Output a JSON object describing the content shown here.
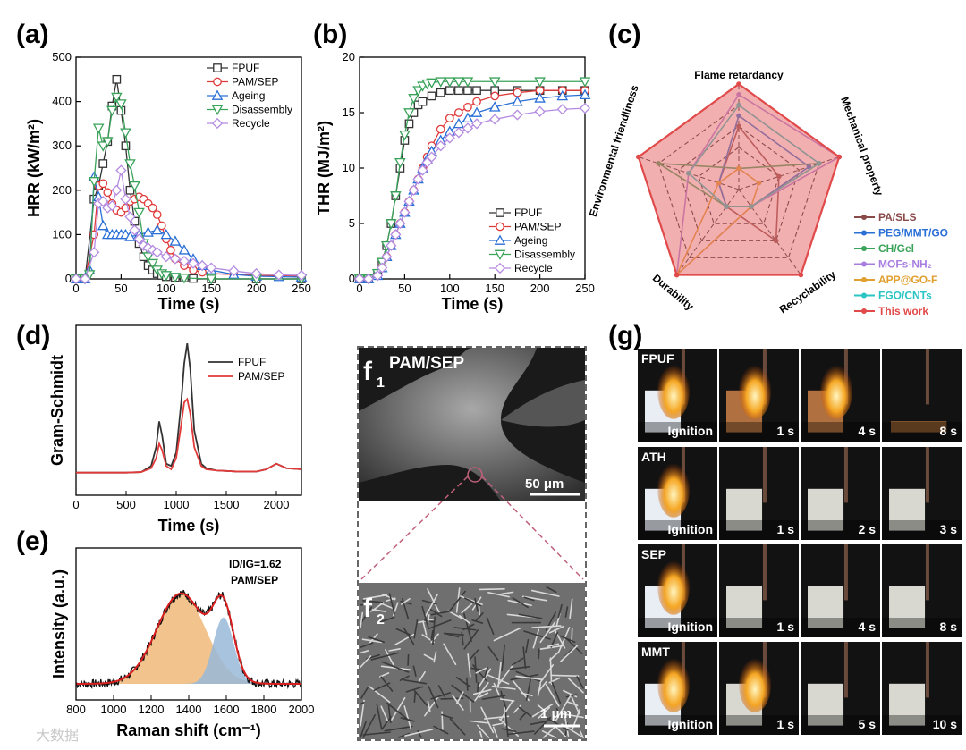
{
  "panels": {
    "a": "(a)",
    "b": "(b)",
    "c": "(c)",
    "d": "(d)",
    "e": "(e)",
    "g": "(g)"
  },
  "watermark": "大数据",
  "chart_data": [
    {
      "id": "a",
      "type": "line",
      "xlabel": "Time (s)",
      "ylabel": "HRR (kW/m²)",
      "xlim": [
        0,
        250
      ],
      "ylim": [
        0,
        500
      ],
      "xticks": [
        "0",
        "50",
        "100",
        "150",
        "200",
        "250"
      ],
      "yticks": [
        "0",
        "100",
        "200",
        "300",
        "400",
        "500"
      ],
      "series": [
        {
          "name": "FPUF",
          "color": "#333333",
          "marker": "square",
          "x": [
            0,
            10,
            20,
            25,
            30,
            35,
            40,
            45,
            50,
            55,
            60,
            65,
            70,
            75,
            80,
            85,
            90,
            95,
            100,
            110,
            120,
            130,
            150,
            200,
            250
          ],
          "y": [
            0,
            0,
            180,
            210,
            260,
            310,
            390,
            450,
            380,
            300,
            200,
            130,
            80,
            50,
            30,
            20,
            12,
            8,
            5,
            3,
            2,
            1,
            0,
            0,
            0
          ]
        },
        {
          "name": "PAM/SEP",
          "color": "#e03a3a",
          "marker": "circle",
          "x": [
            0,
            10,
            20,
            25,
            30,
            35,
            40,
            45,
            50,
            55,
            60,
            65,
            70,
            75,
            80,
            85,
            90,
            95,
            100,
            105,
            110,
            120,
            130,
            140,
            150,
            175,
            200,
            225,
            250
          ],
          "y": [
            0,
            0,
            100,
            210,
            215,
            195,
            170,
            155,
            150,
            160,
            175,
            180,
            185,
            180,
            170,
            160,
            145,
            120,
            90,
            65,
            45,
            30,
            20,
            15,
            12,
            10,
            8,
            7,
            6
          ]
        },
        {
          "name": "Ageing",
          "color": "#2a6fd6",
          "marker": "triangle",
          "x": [
            0,
            10,
            15,
            20,
            25,
            30,
            35,
            40,
            45,
            50,
            55,
            60,
            70,
            80,
            90,
            100,
            110,
            120,
            130,
            140,
            150,
            175,
            200,
            225,
            250
          ],
          "y": [
            0,
            0,
            20,
            230,
            185,
            120,
            100,
            100,
            100,
            100,
            100,
            95,
            100,
            105,
            110,
            100,
            85,
            65,
            45,
            30,
            20,
            10,
            6,
            5,
            4
          ]
        },
        {
          "name": "Disassembly",
          "color": "#3aa35a",
          "marker": "triangle-down",
          "x": [
            0,
            10,
            15,
            20,
            25,
            30,
            35,
            40,
            45,
            50,
            55,
            60,
            65,
            70,
            75,
            80,
            85,
            90,
            95,
            100,
            110,
            120,
            150,
            200,
            250
          ],
          "y": [
            0,
            0,
            10,
            220,
            340,
            300,
            310,
            380,
            410,
            395,
            330,
            260,
            210,
            150,
            80,
            50,
            35,
            20,
            12,
            8,
            4,
            2,
            0,
            0,
            0
          ]
        },
        {
          "name": "Recycle",
          "color": "#b48be0",
          "marker": "diamond",
          "x": [
            0,
            10,
            20,
            25,
            30,
            35,
            40,
            45,
            50,
            55,
            60,
            65,
            70,
            75,
            80,
            85,
            90,
            100,
            110,
            120,
            130,
            140,
            150,
            175,
            200,
            225,
            250
          ],
          "y": [
            0,
            0,
            60,
            170,
            175,
            160,
            165,
            200,
            245,
            180,
            140,
            110,
            90,
            75,
            70,
            65,
            60,
            50,
            45,
            40,
            35,
            30,
            25,
            18,
            12,
            9,
            8
          ]
        }
      ]
    },
    {
      "id": "b",
      "type": "line",
      "xlabel": "Time (s)",
      "ylabel": "THR (MJ/m²)",
      "xlim": [
        0,
        250
      ],
      "ylim": [
        0,
        20
      ],
      "xticks": [
        "0",
        "50",
        "100",
        "150",
        "200",
        "250"
      ],
      "yticks": [
        "0",
        "5",
        "10",
        "15",
        "20"
      ],
      "series": [
        {
          "name": "FPUF",
          "color": "#333333",
          "marker": "square",
          "x": [
            0,
            10,
            20,
            25,
            30,
            35,
            40,
            45,
            50,
            55,
            60,
            65,
            70,
            80,
            90,
            100,
            110,
            120,
            130,
            150,
            175,
            200,
            225,
            250
          ],
          "y": [
            0,
            0,
            0.5,
            1.5,
            3,
            5,
            7.5,
            10,
            12.5,
            14,
            15,
            15.7,
            16,
            16.5,
            16.8,
            17,
            17,
            17,
            17,
            17,
            17,
            17,
            17,
            17
          ]
        },
        {
          "name": "PAM/SEP",
          "color": "#e03a3a",
          "marker": "circle",
          "x": [
            0,
            10,
            20,
            25,
            30,
            35,
            40,
            45,
            50,
            55,
            60,
            65,
            70,
            75,
            80,
            90,
            100,
            110,
            120,
            130,
            150,
            175,
            200,
            225,
            250
          ],
          "y": [
            0,
            0,
            0.3,
            1,
            2,
            3,
            4,
            5,
            6,
            7,
            8,
            9,
            10,
            11,
            12,
            13.5,
            14.5,
            15,
            15.5,
            16,
            16.5,
            16.8,
            17,
            17,
            17
          ]
        },
        {
          "name": "Ageing",
          "color": "#2a6fd6",
          "marker": "triangle",
          "x": [
            0,
            10,
            20,
            25,
            30,
            35,
            40,
            45,
            50,
            55,
            60,
            65,
            70,
            75,
            80,
            90,
            100,
            110,
            120,
            130,
            150,
            175,
            200,
            225,
            250
          ],
          "y": [
            0,
            0,
            0.3,
            1,
            2,
            3,
            4,
            5,
            6,
            7,
            8,
            9,
            10,
            10.8,
            11.5,
            12.5,
            13.3,
            14,
            14.5,
            15,
            15.5,
            16,
            16.3,
            16.5,
            16.6
          ]
        },
        {
          "name": "Disassembly",
          "color": "#3aa35a",
          "marker": "triangle-down",
          "x": [
            0,
            10,
            20,
            25,
            30,
            35,
            40,
            45,
            50,
            55,
            60,
            65,
            70,
            75,
            80,
            90,
            100,
            110,
            120,
            150,
            200,
            250
          ],
          "y": [
            0,
            0,
            0.5,
            1.5,
            3,
            5,
            7.5,
            10.5,
            13,
            15,
            16.3,
            17,
            17.4,
            17.6,
            17.7,
            17.8,
            17.8,
            17.8,
            17.8,
            17.8,
            17.8,
            17.8
          ]
        },
        {
          "name": "Recycle",
          "color": "#b48be0",
          "marker": "diamond",
          "x": [
            0,
            10,
            20,
            25,
            30,
            35,
            40,
            45,
            50,
            55,
            60,
            65,
            70,
            75,
            80,
            90,
            100,
            110,
            120,
            130,
            150,
            175,
            200,
            225,
            250
          ],
          "y": [
            0,
            0,
            0.3,
            1,
            2,
            3,
            4,
            5,
            6,
            7,
            8,
            9,
            9.8,
            10.5,
            11,
            12,
            12.7,
            13.2,
            13.6,
            14,
            14.4,
            14.8,
            15.1,
            15.3,
            15.4
          ]
        }
      ]
    },
    {
      "id": "c",
      "type": "radar",
      "axes": [
        "Flame retardancy",
        "Mechanical property",
        "Recyclability",
        "Durability",
        "Environmental friendliness"
      ],
      "levels": 5,
      "series": [
        {
          "name": "PA/SLS",
          "color": "#8b4a4a",
          "marker": "square",
          "values": [
            3,
            2,
            3,
            1,
            1
          ]
        },
        {
          "name": "PEG/MMT/GO",
          "color": "#2a6fd6",
          "marker": "circle",
          "values": [
            3.5,
            3.5,
            1,
            1,
            1
          ]
        },
        {
          "name": "CH/Gel",
          "color": "#3aa35a",
          "marker": "triangle",
          "values": [
            1,
            4,
            1,
            1,
            4
          ]
        },
        {
          "name": "MOFs-NH₂",
          "color": "#a77ee0",
          "marker": "triangle-down",
          "values": [
            4.5,
            5,
            1,
            5,
            2.5
          ]
        },
        {
          "name": "APP@GO-F",
          "color": "#e0a030",
          "marker": "diamond",
          "values": [
            1,
            1,
            1,
            5,
            1
          ]
        },
        {
          "name": "FGO/CNTs",
          "color": "#2ac4c4",
          "marker": "triangle-left",
          "values": [
            4,
            4,
            1,
            1,
            2.5
          ]
        },
        {
          "name": "This work",
          "color": "#e04a4a",
          "marker": "circle-open",
          "values": [
            5,
            5,
            5,
            5,
            5
          ]
        }
      ]
    },
    {
      "id": "d",
      "type": "line",
      "xlabel": "Time (s)",
      "ylabel": "Gram-Schmidt",
      "xlim": [
        0,
        2250
      ],
      "xticks": [
        "0",
        "500",
        "1000",
        "1500",
        "2000"
      ],
      "series": [
        {
          "name": "FPUF",
          "color": "#333333",
          "x": [
            0,
            500,
            650,
            750,
            800,
            830,
            860,
            900,
            950,
            1000,
            1050,
            1080,
            1110,
            1140,
            1180,
            1250,
            1300,
            1400,
            1600,
            1800,
            1900,
            2000,
            2100,
            2250
          ],
          "y": [
            2,
            2,
            2.5,
            8,
            25,
            48,
            35,
            10,
            8,
            20,
            65,
            100,
            118,
            95,
            40,
            10,
            6,
            4,
            3,
            3,
            5,
            10,
            6,
            5
          ]
        },
        {
          "name": "PAM/SEP",
          "color": "#e03a3a",
          "x": [
            0,
            500,
            650,
            750,
            800,
            830,
            860,
            900,
            950,
            1000,
            1050,
            1080,
            1110,
            1140,
            1180,
            1250,
            1300,
            1400,
            1600,
            1800,
            1900,
            2000,
            2100,
            2250
          ],
          "y": [
            2,
            2,
            2.5,
            6,
            15,
            28,
            22,
            8,
            5,
            15,
            45,
            65,
            68,
            55,
            25,
            8,
            5,
            4,
            3,
            3,
            5,
            10,
            6,
            5
          ]
        }
      ]
    },
    {
      "id": "e",
      "type": "line",
      "xlabel": "Raman shift (cm⁻¹)",
      "ylabel": "Intensity (a.u.)",
      "xlim": [
        800,
        2000
      ],
      "xticks": [
        "800",
        "1000",
        "1200",
        "1400",
        "1600",
        "1800",
        "2000"
      ],
      "annotation": "ID/IG=1.62",
      "annotation2": "PAM/SEP",
      "bands": [
        {
          "name": "D",
          "center": 1360,
          "width": 130,
          "height": 0.75,
          "color": "#f0b878"
        },
        {
          "name": "G",
          "center": 1585,
          "width": 55,
          "height": 0.55,
          "color": "#98b8d8"
        }
      ]
    }
  ],
  "micrographs": {
    "f1_label": "f",
    "f1_sub": "1",
    "f1_title": "PAM/SEP",
    "f1_scale": "50 μm",
    "f2_label": "f",
    "f2_sub": "2",
    "f2_scale": "1 μm"
  },
  "burn_rows": [
    {
      "sample": "FPUF",
      "times": [
        "Ignition",
        "1 s",
        "4 s",
        "8 s"
      ]
    },
    {
      "sample": "ATH",
      "times": [
        "Ignition",
        "1 s",
        "2 s",
        "3 s"
      ]
    },
    {
      "sample": "SEP",
      "times": [
        "Ignition",
        "1 s",
        "4 s",
        "8 s"
      ]
    },
    {
      "sample": "MMT",
      "times": [
        "Ignition",
        "1 s",
        "5 s",
        "10 s"
      ]
    }
  ]
}
